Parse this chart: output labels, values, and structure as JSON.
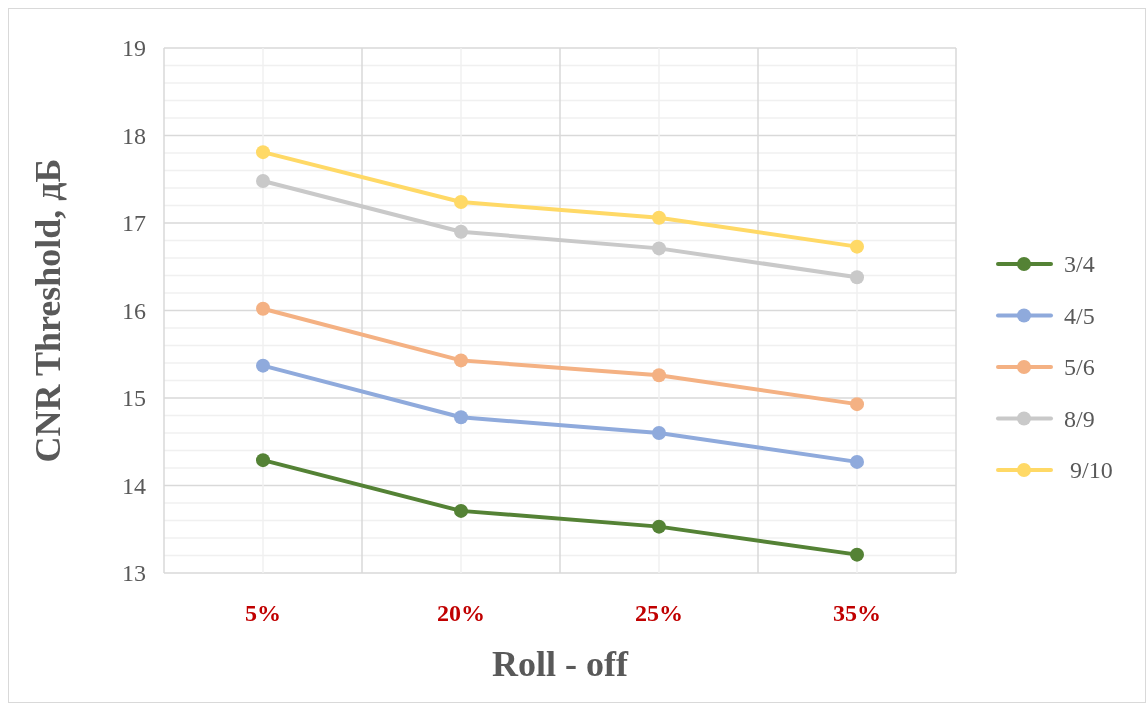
{
  "chart_data": {
    "type": "line",
    "xlabel": "Roll - off",
    "ylabel": "CNR Threshold, дБ",
    "categories": [
      "5%",
      "20%",
      "25%",
      "35%"
    ],
    "series": [
      {
        "name": "3/4",
        "color": "#548235",
        "values": [
          14.29,
          13.71,
          13.53,
          13.21
        ]
      },
      {
        "name": "4/5",
        "color": "#8faadc",
        "values": [
          15.37,
          14.78,
          14.6,
          14.27
        ]
      },
      {
        "name": "5/6",
        "color": "#f4b183",
        "values": [
          16.02,
          15.43,
          15.26,
          14.93
        ]
      },
      {
        "name": "8/9",
        "color": "#c9c9c9",
        "values": [
          17.48,
          16.9,
          16.71,
          16.38
        ]
      },
      {
        "name": " 9/10",
        "color": "#ffd966",
        "values": [
          17.81,
          17.24,
          17.06,
          16.73
        ]
      }
    ],
    "ylim": [
      13,
      19
    ],
    "yticks": [
      13,
      {
        "value": 13.2,
        "label": null
      },
      {
        "value": 13.4,
        "label": null
      },
      {
        "value": 13.6,
        "label": null
      },
      {
        "value": 13.8,
        "label": null
      },
      14,
      {
        "value": 14.2,
        "label": null
      },
      {
        "value": 14.4,
        "label": null
      },
      {
        "value": 14.6,
        "label": null
      },
      {
        "value": 14.8,
        "label": null
      },
      15,
      {
        "value": 15.2,
        "label": null
      },
      {
        "value": 15.4,
        "label": null
      },
      {
        "value": 15.6,
        "label": null
      },
      {
        "value": 15.8,
        "label": null
      },
      16,
      {
        "value": 16.2,
        "label": null
      },
      {
        "value": 16.4,
        "label": null
      },
      {
        "value": 16.6,
        "label": null
      },
      {
        "value": 16.8,
        "label": null
      },
      17,
      {
        "value": 17.2,
        "label": null
      },
      {
        "value": 17.4,
        "label": null
      },
      {
        "value": 17.6,
        "label": null
      },
      {
        "value": 17.8,
        "label": null
      },
      18,
      {
        "value": 18.2,
        "label": null
      },
      {
        "value": 18.4,
        "label": null
      },
      {
        "value": 18.6,
        "label": null
      },
      {
        "value": 18.8,
        "label": null
      },
      19
    ],
    "grid": true,
    "legend": "right",
    "marker": "circle",
    "line_style": "solid"
  }
}
